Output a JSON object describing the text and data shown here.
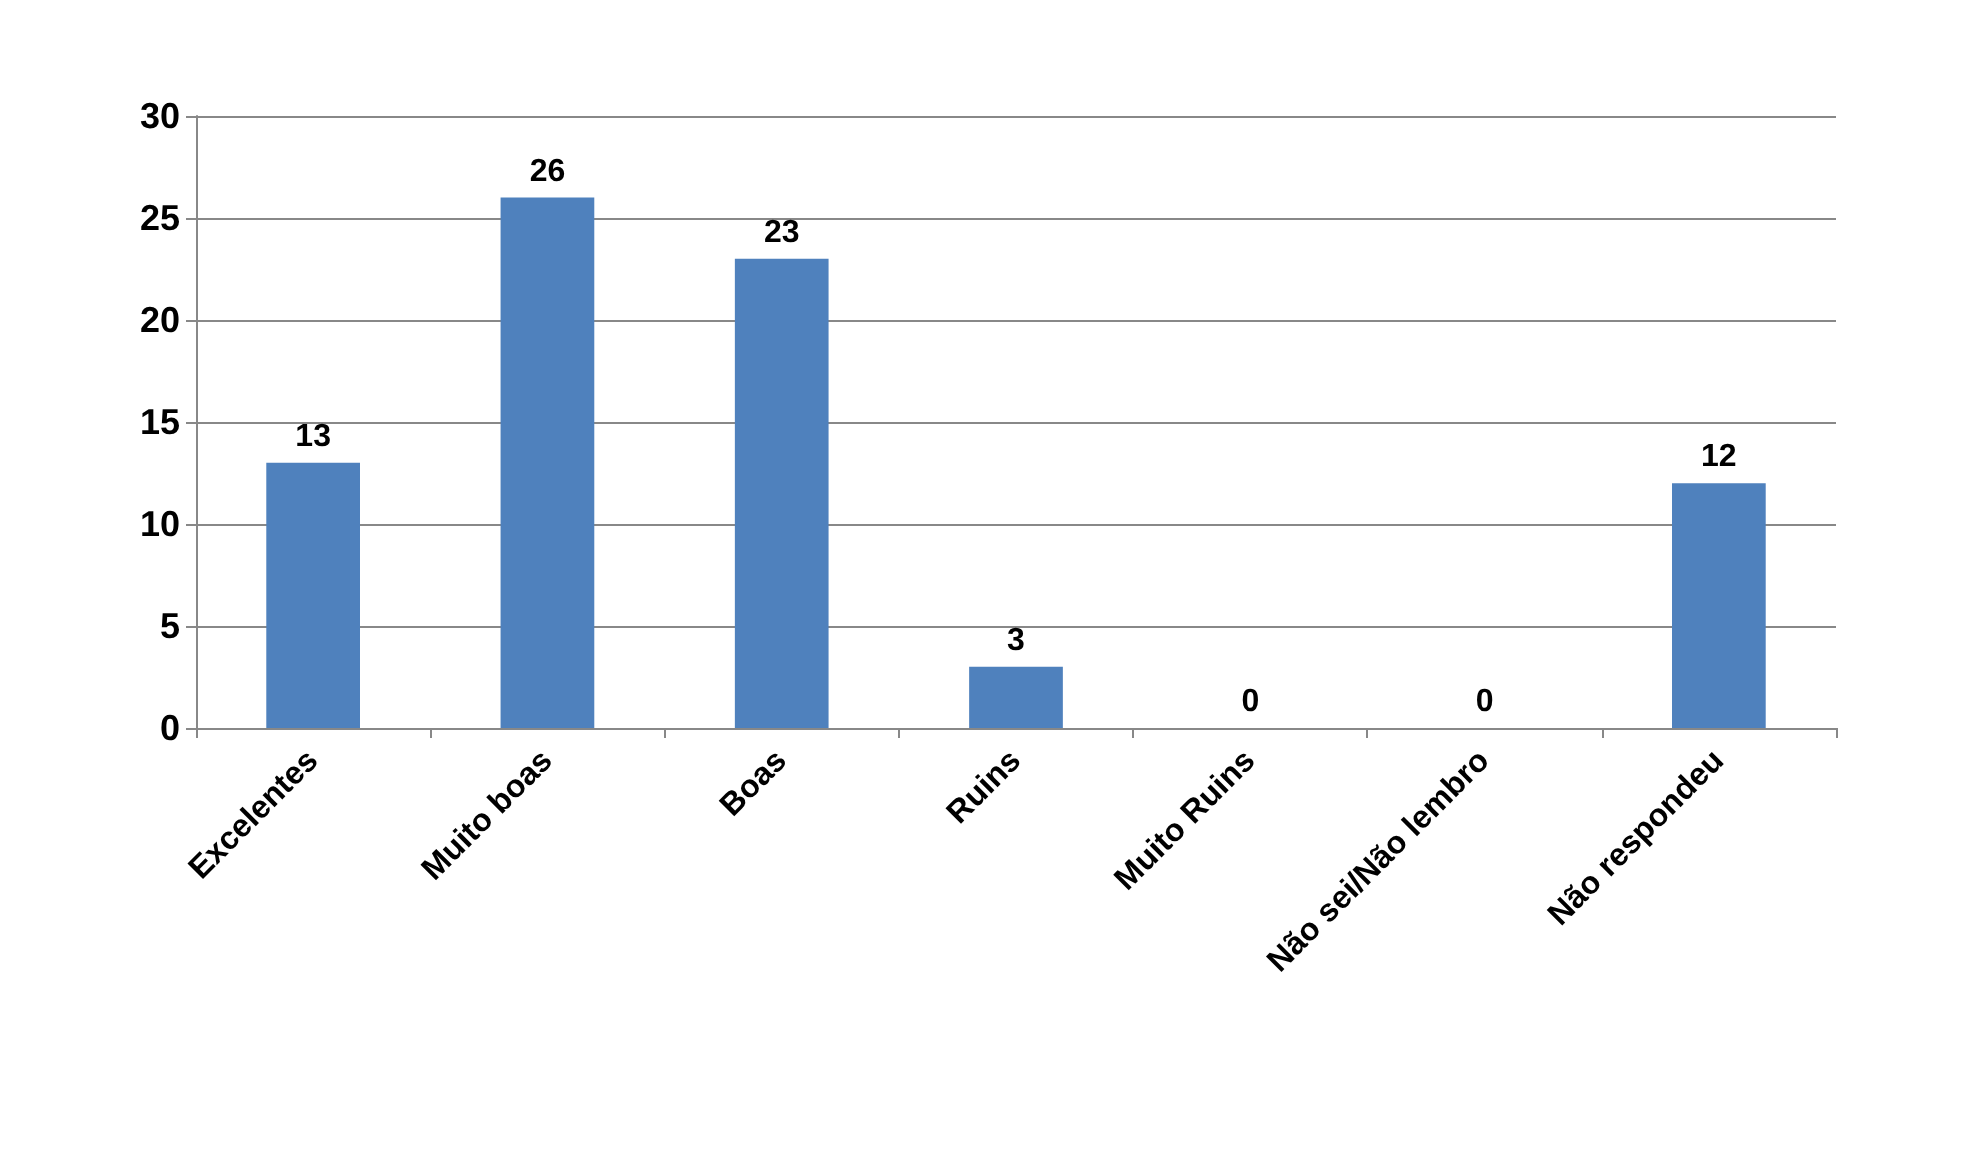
{
  "chart_data": {
    "type": "bar",
    "categories": [
      "Excelentes",
      "Muito boas",
      "Boas",
      "Ruins",
      "Muito Ruins",
      "Não sei/Não lembro",
      "Não respondeu"
    ],
    "values": [
      13,
      26,
      23,
      3,
      0,
      0,
      12
    ],
    "color": "#4f81bd",
    "ylim": [
      0,
      30
    ],
    "yticks": [
      0,
      5,
      10,
      15,
      20,
      25,
      30
    ],
    "grid": "y",
    "data_labels": true
  }
}
